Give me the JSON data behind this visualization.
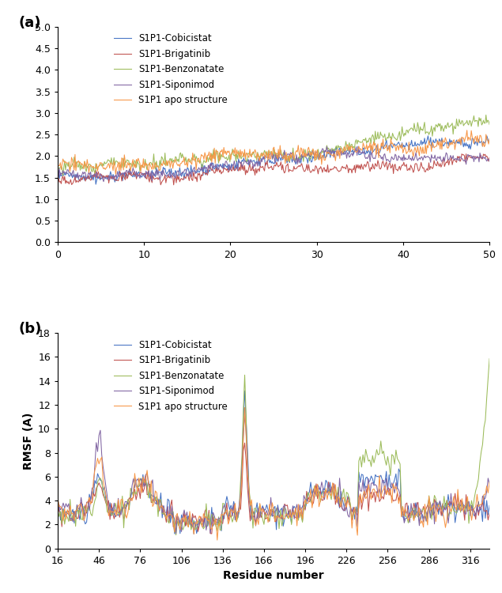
{
  "panel_a": {
    "title": "(a)",
    "xlim": [
      0,
      50
    ],
    "ylim": [
      0,
      5
    ],
    "yticks": [
      0,
      0.5,
      1,
      1.5,
      2,
      2.5,
      3,
      3.5,
      4,
      4.5,
      5
    ],
    "xticks": [
      0,
      10,
      20,
      30,
      40,
      50
    ],
    "colors": {
      "cobicistat": "#4472C4",
      "brigatinib": "#C0504D",
      "benzonatate": "#9BBB59",
      "siponimod": "#8064A2",
      "apo": "#F79646"
    },
    "seed": 42,
    "n_points": 500
  },
  "panel_b": {
    "title": "(b)",
    "ylabel": "RMSF (A)",
    "xlabel": "Residue number",
    "xlim": [
      16,
      330
    ],
    "ylim": [
      0,
      18
    ],
    "yticks": [
      0,
      2,
      4,
      6,
      8,
      10,
      12,
      14,
      16,
      18
    ],
    "xticks": [
      16,
      46,
      76,
      106,
      136,
      166,
      196,
      226,
      256,
      286,
      316
    ],
    "colors": {
      "cobicistat": "#4472C4",
      "brigatinib": "#C0504D",
      "benzonatate": "#9BBB59",
      "siponimod": "#8064A2",
      "apo": "#F79646"
    },
    "seed": 7,
    "n_points": 315
  },
  "legend_labels": [
    "S1P1-Cobicistat",
    "S1P1-Brigatinib",
    "S1P1-Benzonatate",
    "S1P1-Siponimod",
    "S1P1 apo structure"
  ],
  "background_color": "#ffffff"
}
